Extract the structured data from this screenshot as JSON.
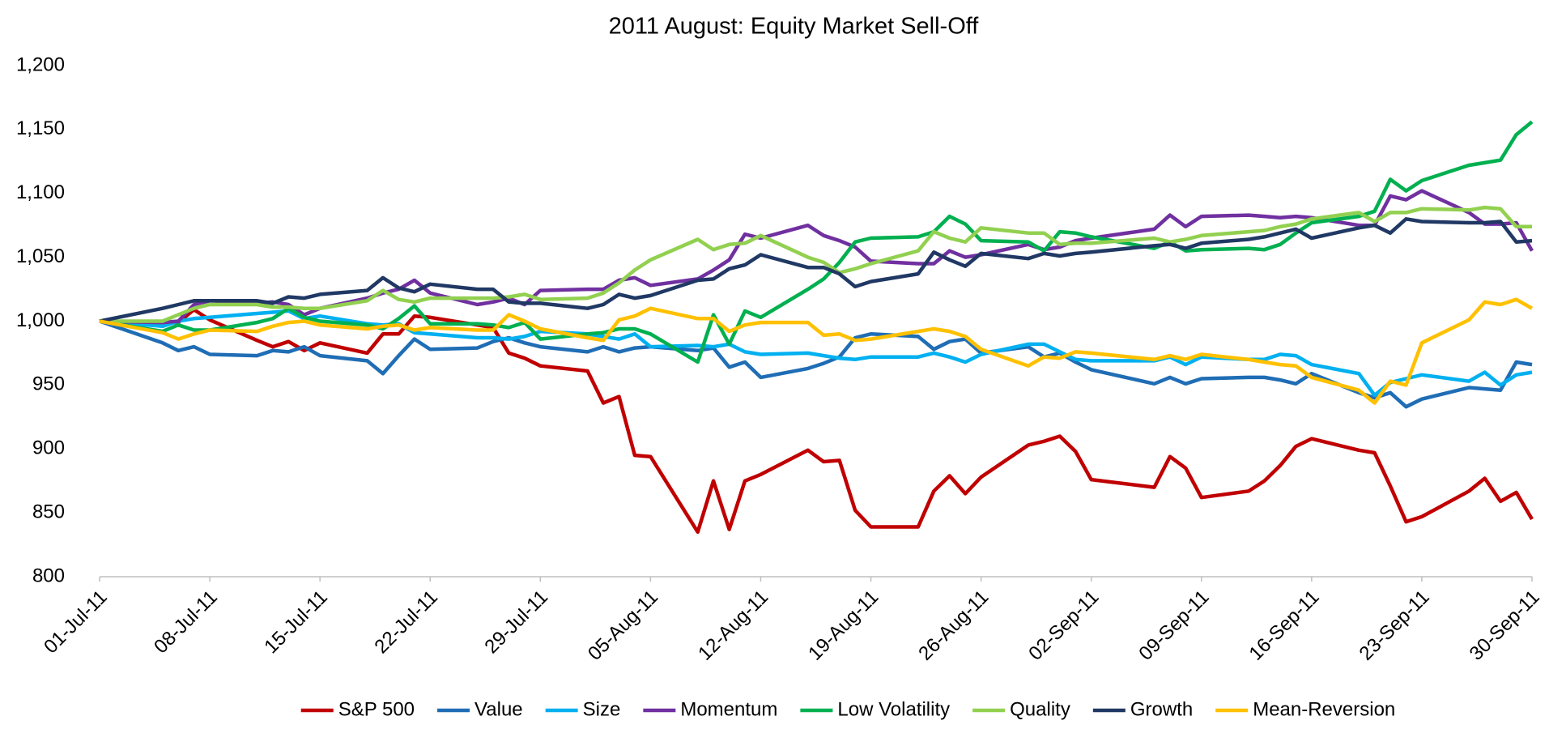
{
  "chart_data": {
    "type": "line",
    "title": "2011 August: Equity Market Sell-Off",
    "x": [
      "01-Jul-11",
      "05-Jul-11",
      "06-Jul-11",
      "07-Jul-11",
      "08-Jul-11",
      "11-Jul-11",
      "12-Jul-11",
      "13-Jul-11",
      "14-Jul-11",
      "15-Jul-11",
      "18-Jul-11",
      "19-Jul-11",
      "20-Jul-11",
      "21-Jul-11",
      "22-Jul-11",
      "25-Jul-11",
      "26-Jul-11",
      "27-Jul-11",
      "28-Jul-11",
      "29-Jul-11",
      "01-Aug-11",
      "02-Aug-11",
      "03-Aug-11",
      "04-Aug-11",
      "05-Aug-11",
      "08-Aug-11",
      "09-Aug-11",
      "10-Aug-11",
      "11-Aug-11",
      "12-Aug-11",
      "15-Aug-11",
      "16-Aug-11",
      "17-Aug-11",
      "18-Aug-11",
      "19-Aug-11",
      "22-Aug-11",
      "23-Aug-11",
      "24-Aug-11",
      "25-Aug-11",
      "26-Aug-11",
      "29-Aug-11",
      "30-Aug-11",
      "31-Aug-11",
      "01-Sep-11",
      "02-Sep-11",
      "06-Sep-11",
      "07-Sep-11",
      "08-Sep-11",
      "09-Sep-11",
      "12-Sep-11",
      "13-Sep-11",
      "14-Sep-11",
      "15-Sep-11",
      "16-Sep-11",
      "19-Sep-11",
      "20-Sep-11",
      "21-Sep-11",
      "22-Sep-11",
      "23-Sep-11",
      "26-Sep-11",
      "27-Sep-11",
      "28-Sep-11",
      "29-Sep-11",
      "30-Sep-11"
    ],
    "series": [
      {
        "name": "S&P 500",
        "color": "#c00000",
        "values": [
          1000,
          999,
          999,
          1009,
          1001,
          985,
          980,
          984,
          977,
          983,
          975,
          990,
          990,
          1004,
          1003,
          997,
          995,
          975,
          971,
          965,
          961,
          936,
          941,
          895,
          894,
          835,
          875,
          837,
          875,
          880,
          899,
          890,
          891,
          852,
          839,
          839,
          867,
          879,
          865,
          878,
          903,
          906,
          910,
          898,
          876,
          870,
          894,
          885,
          862,
          867,
          875,
          887,
          902,
          908,
          899,
          897,
          871,
          843,
          847,
          867,
          877,
          859,
          866,
          845
        ]
      },
      {
        "name": "Value",
        "color": "#1f6db5",
        "values": [
          1000,
          983,
          977,
          980,
          974,
          973,
          977,
          976,
          980,
          973,
          969,
          959,
          973,
          986,
          978,
          979,
          984,
          987,
          983,
          980,
          976,
          980,
          976,
          979,
          980,
          977,
          979,
          964,
          968,
          956,
          963,
          967,
          972,
          987,
          990,
          988,
          978,
          984,
          986,
          975,
          980,
          972,
          975,
          968,
          962,
          951,
          956,
          951,
          955,
          956,
          956,
          954,
          951,
          959,
          944,
          940,
          944,
          933,
          939,
          948,
          947,
          946,
          968,
          966
        ]
      },
      {
        "name": "Size",
        "color": "#00b0f0",
        "values": [
          1000,
          996,
          1000,
          1002,
          1003,
          1006,
          1007,
          1008,
          1002,
          1004,
          998,
          997,
          998,
          991,
          990,
          987,
          987,
          986,
          988,
          992,
          990,
          988,
          986,
          990,
          980,
          981,
          980,
          982,
          976,
          974,
          975,
          973,
          971,
          970,
          972,
          972,
          975,
          972,
          968,
          974,
          982,
          982,
          976,
          970,
          969,
          969,
          972,
          966,
          972,
          970,
          970,
          974,
          973,
          966,
          959,
          942,
          952,
          955,
          958,
          953,
          960,
          950,
          958,
          960
        ]
      },
      {
        "name": "Momentum",
        "color": "#7030a0",
        "values": [
          1000,
          999,
          1000,
          1013,
          1016,
          1014,
          1015,
          1013,
          1005,
          1010,
          1018,
          1022,
          1025,
          1032,
          1022,
          1013,
          1015,
          1018,
          1013,
          1024,
          1025,
          1025,
          1032,
          1034,
          1028,
          1033,
          1040,
          1048,
          1068,
          1065,
          1075,
          1067,
          1063,
          1058,
          1047,
          1045,
          1045,
          1055,
          1050,
          1052,
          1060,
          1056,
          1058,
          1063,
          1065,
          1072,
          1083,
          1074,
          1082,
          1083,
          1082,
          1081,
          1082,
          1081,
          1075,
          1075,
          1098,
          1095,
          1102,
          1085,
          1076,
          1076,
          1077,
          1055
        ]
      },
      {
        "name": "Low Volatility",
        "color": "#00b050",
        "values": [
          1000,
          992,
          997,
          993,
          993,
          999,
          1002,
          1010,
          1003,
          1000,
          997,
          994,
          1002,
          1012,
          998,
          998,
          997,
          995,
          999,
          986,
          990,
          991,
          994,
          994,
          990,
          968,
          1005,
          982,
          1008,
          1003,
          1025,
          1033,
          1046,
          1062,
          1065,
          1066,
          1070,
          1082,
          1076,
          1063,
          1062,
          1055,
          1070,
          1069,
          1066,
          1057,
          1062,
          1055,
          1056,
          1057,
          1056,
          1060,
          1069,
          1077,
          1082,
          1086,
          1111,
          1102,
          1110,
          1122,
          1124,
          1126,
          1146,
          1156
        ]
      },
      {
        "name": "Quality",
        "color": "#92d050",
        "values": [
          1000,
          1000,
          1005,
          1010,
          1013,
          1013,
          1011,
          1011,
          1010,
          1010,
          1016,
          1024,
          1017,
          1015,
          1018,
          1018,
          1018,
          1019,
          1021,
          1017,
          1018,
          1022,
          1030,
          1040,
          1048,
          1064,
          1056,
          1060,
          1061,
          1067,
          1050,
          1046,
          1038,
          1041,
          1045,
          1055,
          1070,
          1065,
          1062,
          1073,
          1069,
          1069,
          1060,
          1061,
          1061,
          1065,
          1062,
          1064,
          1067,
          1070,
          1071,
          1074,
          1076,
          1080,
          1085,
          1078,
          1085,
          1085,
          1088,
          1087,
          1089,
          1088,
          1074,
          1074
        ]
      },
      {
        "name": "Growth",
        "color": "#203864",
        "values": [
          1000,
          1010,
          1013,
          1016,
          1016,
          1016,
          1014,
          1019,
          1018,
          1021,
          1024,
          1034,
          1026,
          1023,
          1029,
          1025,
          1025,
          1015,
          1014,
          1014,
          1010,
          1013,
          1021,
          1018,
          1020,
          1032,
          1033,
          1041,
          1044,
          1052,
          1042,
          1042,
          1037,
          1027,
          1031,
          1037,
          1054,
          1048,
          1043,
          1053,
          1049,
          1053,
          1051,
          1053,
          1054,
          1059,
          1060,
          1057,
          1061,
          1064,
          1066,
          1069,
          1072,
          1065,
          1073,
          1075,
          1069,
          1080,
          1078,
          1077,
          1077,
          1078,
          1062,
          1063
        ]
      },
      {
        "name": "Mean-Reversion",
        "color": "#ffc000",
        "values": [
          1000,
          991,
          986,
          990,
          993,
          992,
          996,
          999,
          1000,
          997,
          994,
          996,
          997,
          993,
          995,
          993,
          993,
          1005,
          1000,
          994,
          987,
          985,
          1001,
          1004,
          1010,
          1002,
          1002,
          992,
          997,
          999,
          999,
          989,
          990,
          985,
          986,
          992,
          994,
          992,
          988,
          978,
          965,
          972,
          971,
          976,
          975,
          970,
          973,
          970,
          974,
          970,
          968,
          966,
          965,
          956,
          946,
          936,
          953,
          950,
          983,
          1001,
          1015,
          1013,
          1017,
          1010
        ]
      }
    ],
    "xticks": [
      "01-Jul-11",
      "08-Jul-11",
      "15-Jul-11",
      "22-Jul-11",
      "29-Jul-11",
      "05-Aug-11",
      "12-Aug-11",
      "19-Aug-11",
      "26-Aug-11",
      "02-Sep-11",
      "09-Sep-11",
      "16-Sep-11",
      "23-Sep-11",
      "30-Sep-11"
    ],
    "ylim": [
      800,
      1200
    ],
    "yticks": [
      800,
      850,
      900,
      950,
      {
        "value": 1000,
        "label": "1,000"
      },
      {
        "value": 1050,
        "label": "1,050"
      },
      {
        "value": 1100,
        "label": "1,100"
      },
      {
        "value": 1150,
        "label": "1,150"
      },
      {
        "value": 1200,
        "label": "1,200"
      }
    ],
    "grid": false,
    "legend": "bottom"
  }
}
